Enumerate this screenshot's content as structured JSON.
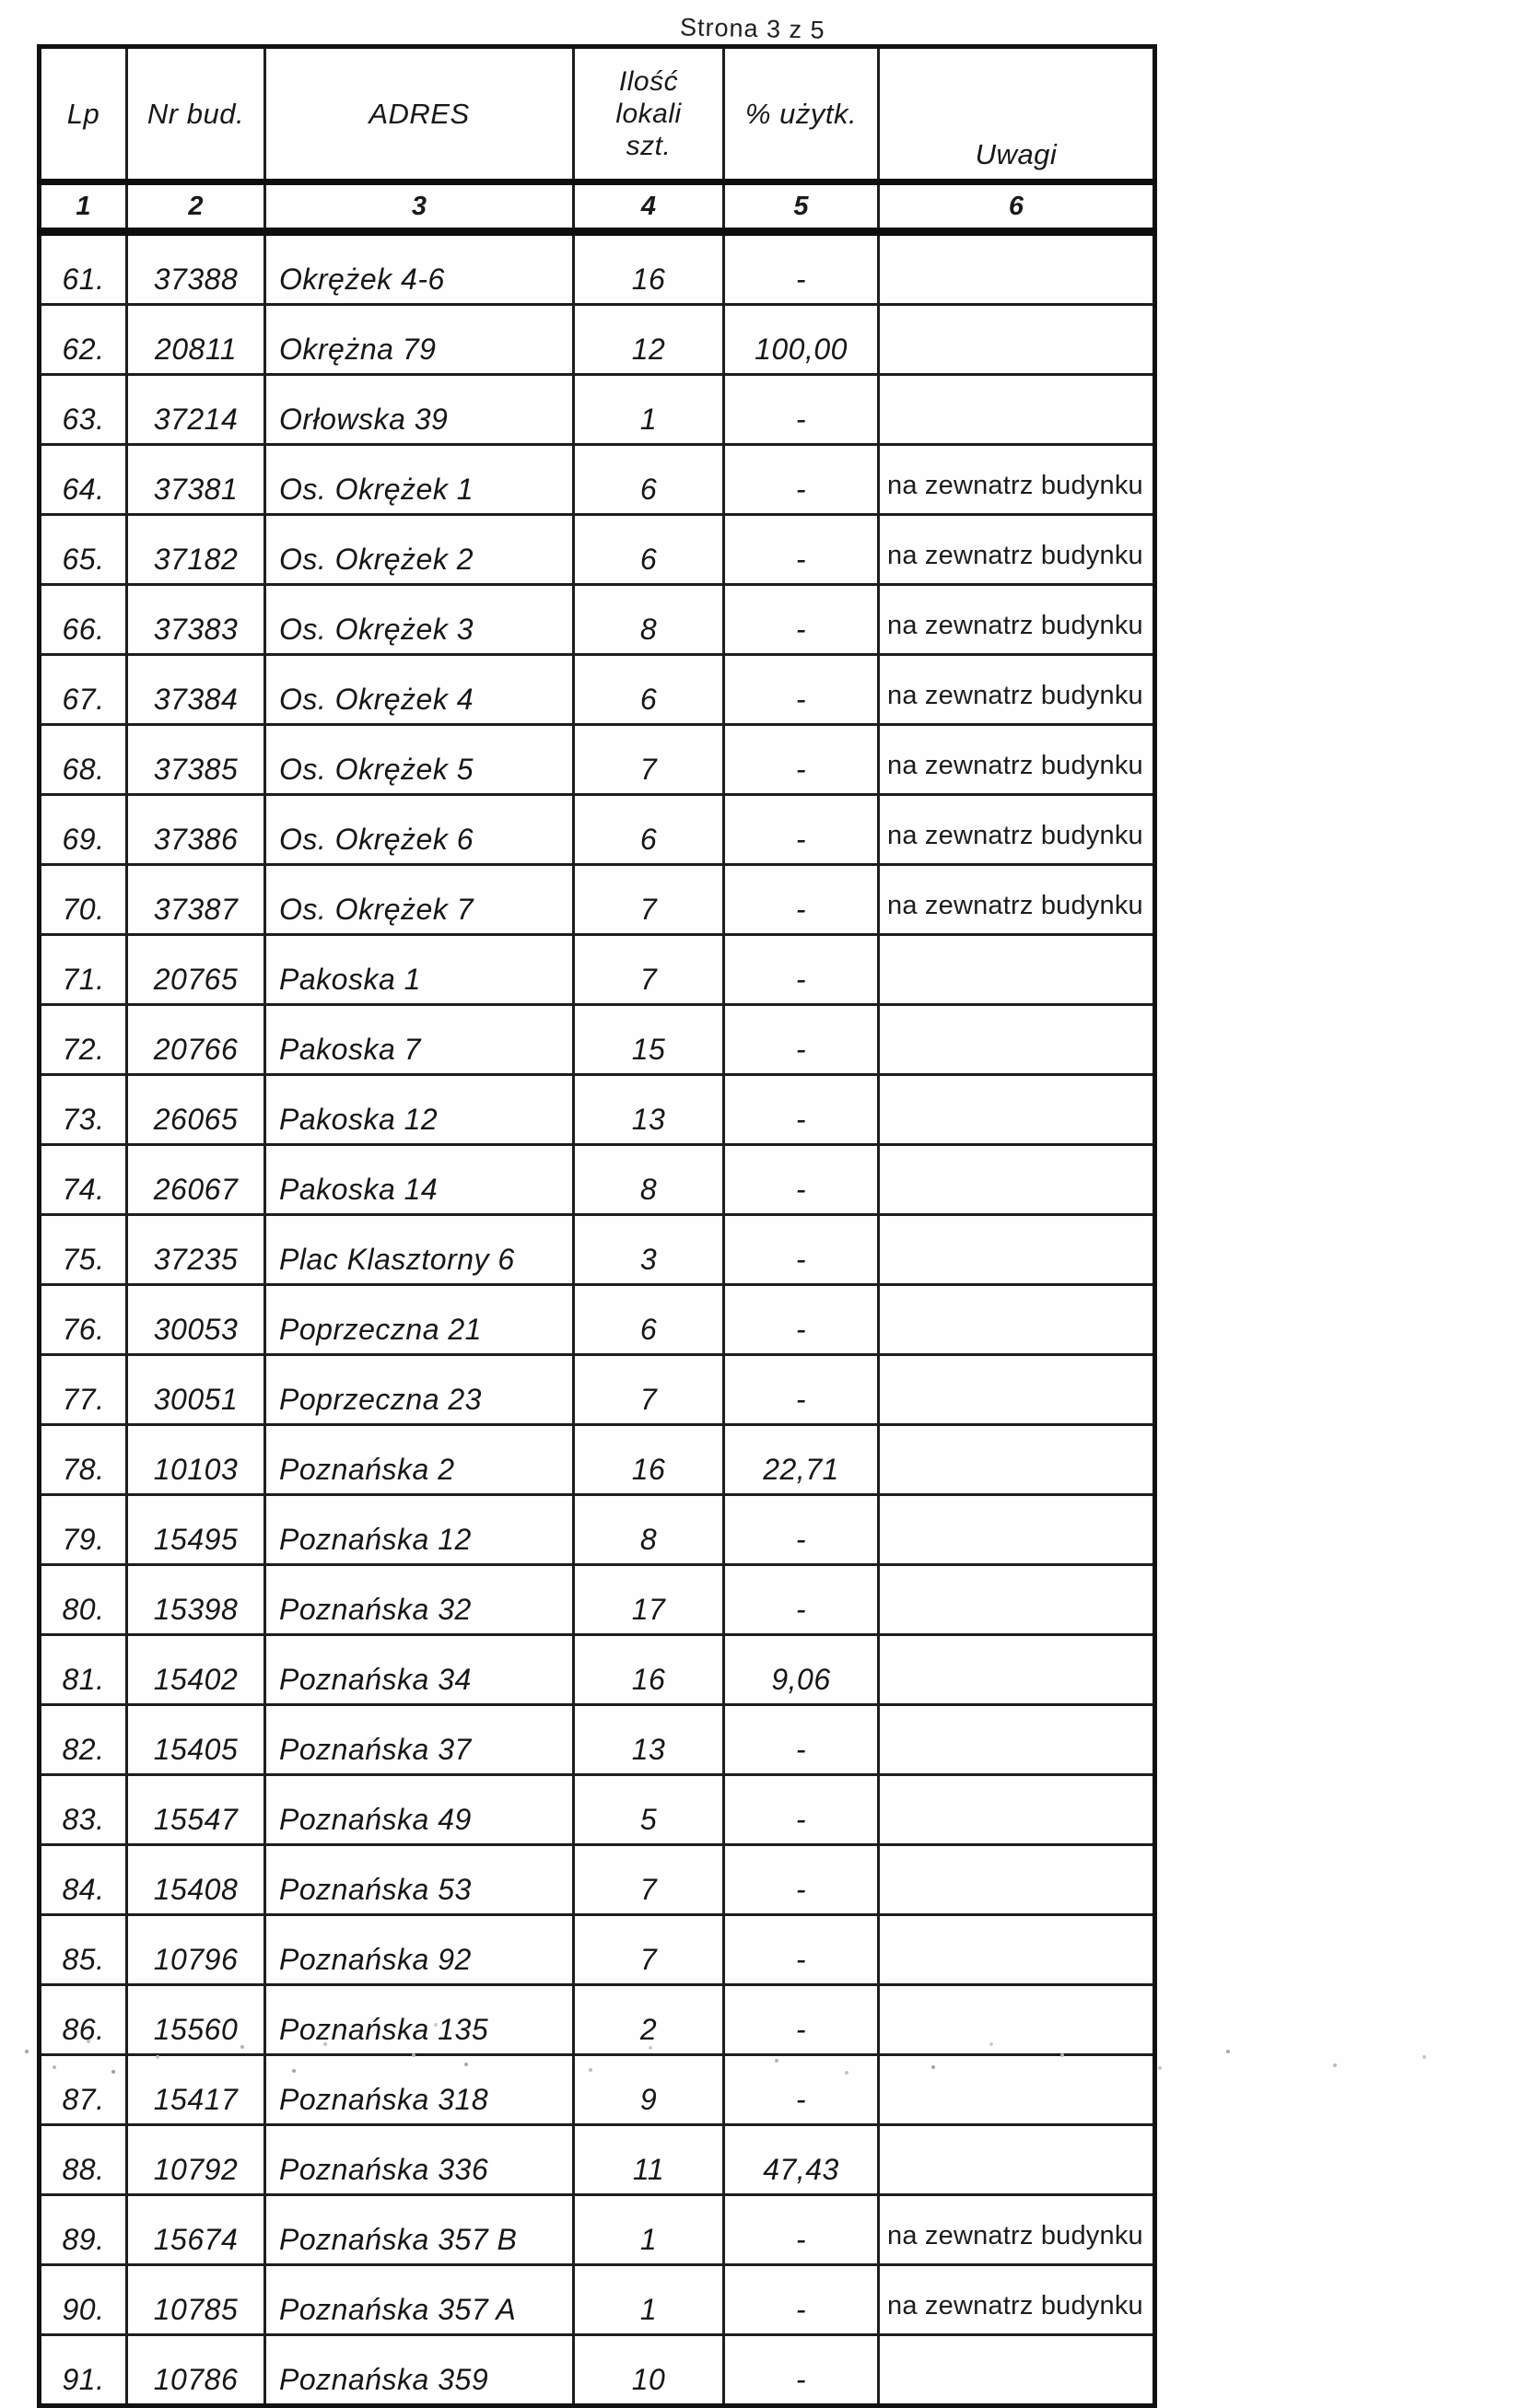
{
  "page": {
    "label": "Strona 3 z 5"
  },
  "table": {
    "headers": {
      "lp": "Lp",
      "nr_bud": "Nr bud.",
      "adres": "ADRES",
      "ilosc_lines": [
        "Ilość",
        "lokali",
        "szt."
      ],
      "uzytk": "% użytk.",
      "uwagi": "Uwagi"
    },
    "col_numbers": [
      "1",
      "2",
      "3",
      "4",
      "5",
      "6"
    ],
    "rows": [
      {
        "lp": "61.",
        "nr": "37388",
        "adres": "Okrężek 4-6",
        "ilosc": "16",
        "uzytk": "-",
        "uwagi": ""
      },
      {
        "lp": "62.",
        "nr": "20811",
        "adres": "Okrężna 79",
        "ilosc": "12",
        "uzytk": "100,00",
        "uwagi": ""
      },
      {
        "lp": "63.",
        "nr": "37214",
        "adres": "Orłowska 39",
        "ilosc": "1",
        "uzytk": "-",
        "uwagi": ""
      },
      {
        "lp": "64.",
        "nr": "37381",
        "adres": "Os. Okrężek 1",
        "ilosc": "6",
        "uzytk": "-",
        "uwagi": "na zewnatrz budynku"
      },
      {
        "lp": "65.",
        "nr": "37182",
        "adres": "Os. Okrężek 2",
        "ilosc": "6",
        "uzytk": "-",
        "uwagi": "na zewnatrz budynku"
      },
      {
        "lp": "66.",
        "nr": "37383",
        "adres": "Os. Okrężek 3",
        "ilosc": "8",
        "uzytk": "-",
        "uwagi": "na zewnatrz budynku"
      },
      {
        "lp": "67.",
        "nr": "37384",
        "adres": "Os. Okrężek 4",
        "ilosc": "6",
        "uzytk": "-",
        "uwagi": "na zewnatrz budynku"
      },
      {
        "lp": "68.",
        "nr": "37385",
        "adres": "Os. Okrężek 5",
        "ilosc": "7",
        "uzytk": "-",
        "uwagi": "na zewnatrz budynku"
      },
      {
        "lp": "69.",
        "nr": "37386",
        "adres": "Os. Okrężek 6",
        "ilosc": "6",
        "uzytk": "-",
        "uwagi": "na zewnatrz budynku"
      },
      {
        "lp": "70.",
        "nr": "37387",
        "adres": "Os. Okrężek 7",
        "ilosc": "7",
        "uzytk": "-",
        "uwagi": "na zewnatrz budynku"
      },
      {
        "lp": "71.",
        "nr": "20765",
        "adres": "Pakoska 1",
        "ilosc": "7",
        "uzytk": "-",
        "uwagi": ""
      },
      {
        "lp": "72.",
        "nr": "20766",
        "adres": "Pakoska 7",
        "ilosc": "15",
        "uzytk": "-",
        "uwagi": ""
      },
      {
        "lp": "73.",
        "nr": "26065",
        "adres": "Pakoska 12",
        "ilosc": "13",
        "uzytk": "-",
        "uwagi": ""
      },
      {
        "lp": "74.",
        "nr": "26067",
        "adres": "Pakoska 14",
        "ilosc": "8",
        "uzytk": "-",
        "uwagi": ""
      },
      {
        "lp": "75.",
        "nr": "37235",
        "adres": "Plac Klasztorny 6",
        "ilosc": "3",
        "uzytk": "-",
        "uwagi": ""
      },
      {
        "lp": "76.",
        "nr": "30053",
        "adres": "Poprzeczna 21",
        "ilosc": "6",
        "uzytk": "-",
        "uwagi": ""
      },
      {
        "lp": "77.",
        "nr": "30051",
        "adres": "Poprzeczna 23",
        "ilosc": "7",
        "uzytk": "-",
        "uwagi": ""
      },
      {
        "lp": "78.",
        "nr": "10103",
        "adres": "Poznańska 2",
        "ilosc": "16",
        "uzytk": "22,71",
        "uwagi": ""
      },
      {
        "lp": "79.",
        "nr": "15495",
        "adres": "Poznańska 12",
        "ilosc": "8",
        "uzytk": "-",
        "uwagi": ""
      },
      {
        "lp": "80.",
        "nr": "15398",
        "adres": "Poznańska 32",
        "ilosc": "17",
        "uzytk": "-",
        "uwagi": ""
      },
      {
        "lp": "81.",
        "nr": "15402",
        "adres": "Poznańska 34",
        "ilosc": "16",
        "uzytk": "9,06",
        "uwagi": ""
      },
      {
        "lp": "82.",
        "nr": "15405",
        "adres": "Poznańska 37",
        "ilosc": "13",
        "uzytk": "-",
        "uwagi": ""
      },
      {
        "lp": "83.",
        "nr": "15547",
        "adres": "Poznańska 49",
        "ilosc": "5",
        "uzytk": "-",
        "uwagi": ""
      },
      {
        "lp": "84.",
        "nr": "15408",
        "adres": "Poznańska 53",
        "ilosc": "7",
        "uzytk": "-",
        "uwagi": ""
      },
      {
        "lp": "85.",
        "nr": "10796",
        "adres": "Poznańska 92",
        "ilosc": "7",
        "uzytk": "-",
        "uwagi": ""
      },
      {
        "lp": "86.",
        "nr": "15560",
        "adres": "Poznańska 135",
        "ilosc": "2",
        "uzytk": "-",
        "uwagi": ""
      },
      {
        "lp": "87.",
        "nr": "15417",
        "adres": "Poznańska 318",
        "ilosc": "9",
        "uzytk": "-",
        "uwagi": ""
      },
      {
        "lp": "88.",
        "nr": "10792",
        "adres": "Poznańska 336",
        "ilosc": "11",
        "uzytk": "47,43",
        "uwagi": ""
      },
      {
        "lp": "89.",
        "nr": "15674",
        "adres": "Poznańska 357 B",
        "ilosc": "1",
        "uzytk": "-",
        "uwagi": "na zewnatrz budynku"
      },
      {
        "lp": "90.",
        "nr": "10785",
        "adres": "Poznańska 357 A",
        "ilosc": "1",
        "uzytk": "-",
        "uwagi": "na zewnatrz budynku"
      },
      {
        "lp": "91.",
        "nr": "10786",
        "adres": "Poznańska 359",
        "ilosc": "10",
        "uzytk": "-",
        "uwagi": ""
      }
    ]
  }
}
